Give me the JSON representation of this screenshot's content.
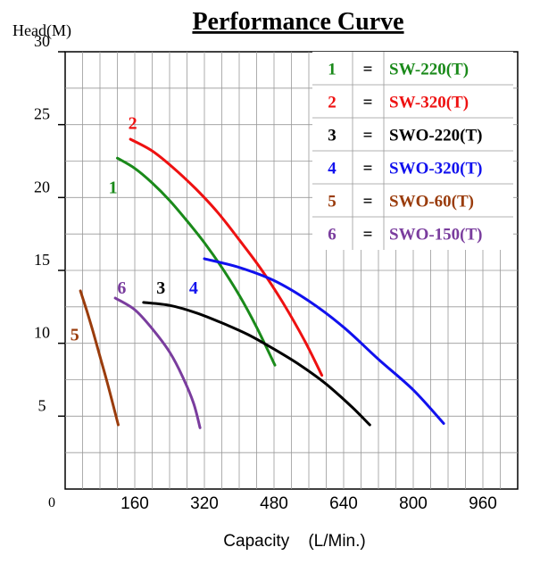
{
  "chart_data": {
    "type": "line",
    "title": "Performance Curve",
    "xlabel": "Capacity    (L/Min.)",
    "ylabel": "Head(M)",
    "xlim": [
      0,
      1040
    ],
    "ylim": [
      0,
      30
    ],
    "x_ticks": [
      "0",
      "160",
      "320",
      "480",
      "640",
      "800",
      "960"
    ],
    "x_tick_values": [
      0,
      160,
      320,
      480,
      640,
      800,
      960
    ],
    "y_ticks": [
      "5",
      "10",
      "15",
      "20",
      "25",
      "30"
    ],
    "y_tick_values": [
      5,
      10,
      15,
      20,
      25,
      30
    ],
    "grid": true,
    "legend_placement": "top-right",
    "legend_separator": "=",
    "series": [
      {
        "number": "1",
        "name": "SW-220(T)",
        "color": "#1a8a1a",
        "x": [
          120,
          160,
          200,
          240,
          280,
          320,
          360,
          400,
          440,
          482
        ],
        "y": [
          22.7,
          22.0,
          21.0,
          19.8,
          18.4,
          16.9,
          15.2,
          13.3,
          11.1,
          8.5
        ],
        "label_at": [
          110,
          20.3
        ]
      },
      {
        "number": "2",
        "name": "SW-320(T)",
        "color": "#ee1111",
        "x": [
          150,
          200,
          250,
          300,
          350,
          400,
          450,
          500,
          550,
          590
        ],
        "y": [
          24.0,
          23.2,
          22.0,
          20.6,
          19.0,
          17.1,
          15.1,
          12.8,
          10.2,
          7.8
        ],
        "label_at": [
          155,
          24.7
        ]
      },
      {
        "number": "3",
        "name": "SWO-220(T)",
        "color": "#000000",
        "x": [
          180,
          240,
          300,
          360,
          420,
          480,
          540,
          600,
          660,
          700
        ],
        "y": [
          12.8,
          12.6,
          12.1,
          11.4,
          10.6,
          9.6,
          8.5,
          7.2,
          5.6,
          4.4
        ],
        "label_at": [
          220,
          13.4
        ]
      },
      {
        "number": "4",
        "name": "SWO-320(T)",
        "color": "#1111ee",
        "x": [
          320,
          400,
          480,
          560,
          640,
          720,
          800,
          870
        ],
        "y": [
          15.8,
          15.2,
          14.3,
          12.9,
          11.1,
          8.9,
          6.8,
          4.5
        ],
        "label_at": [
          295,
          13.4
        ]
      },
      {
        "number": "5",
        "name": "SWO-60(T)",
        "color": "#9a3c0c",
        "x": [
          35,
          50,
          65,
          80,
          95,
          110,
          122
        ],
        "y": [
          13.6,
          12.2,
          10.7,
          9.1,
          7.5,
          5.8,
          4.4
        ],
        "label_at": [
          22,
          10.2
        ]
      },
      {
        "number": "6",
        "name": "SWO-150(T)",
        "color": "#7a3d9e",
        "x": [
          115,
          160,
          200,
          240,
          270,
          295,
          310
        ],
        "y": [
          13.1,
          12.3,
          11.0,
          9.4,
          7.7,
          5.9,
          4.2
        ],
        "label_at": [
          130,
          13.4
        ]
      }
    ]
  }
}
